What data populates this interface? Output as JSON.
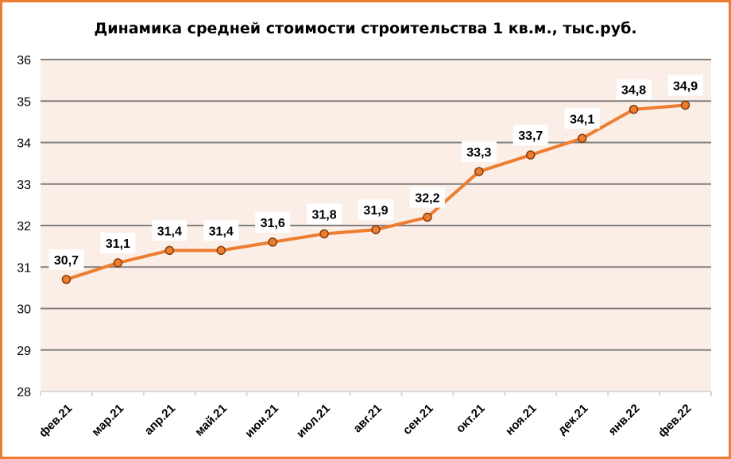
{
  "chart_data": {
    "type": "line",
    "title": "Динамика средней стоимости строительства 1 кв.м., тыс.руб.",
    "categories": [
      "фев.21",
      "мар.21",
      "апр.21",
      "май.21",
      "июн.21",
      "июл.21",
      "авг.21",
      "сен.21",
      "окт.21",
      "ноя.21",
      "дек.21",
      "янв.22",
      "фев.22"
    ],
    "values": [
      30.7,
      31.1,
      31.4,
      31.4,
      31.6,
      31.8,
      31.9,
      32.2,
      33.3,
      33.7,
      34.1,
      34.8,
      34.9
    ],
    "data_labels": [
      "30,7",
      "31,1",
      "31,4",
      "31,4",
      "31,6",
      "31,8",
      "31,9",
      "32,2",
      "33,3",
      "33,7",
      "34,1",
      "34,8",
      "34,9"
    ],
    "ylim": [
      28,
      36
    ],
    "yticks": [
      28,
      29,
      30,
      31,
      32,
      33,
      34,
      35,
      36
    ],
    "grid": true,
    "legend": "none",
    "colors": {
      "line": "#ED7D31",
      "marker_edge": "#843C0C",
      "plot_bg": "#FBEEE6",
      "grid": "#808080",
      "border": "#ED7D31"
    }
  }
}
